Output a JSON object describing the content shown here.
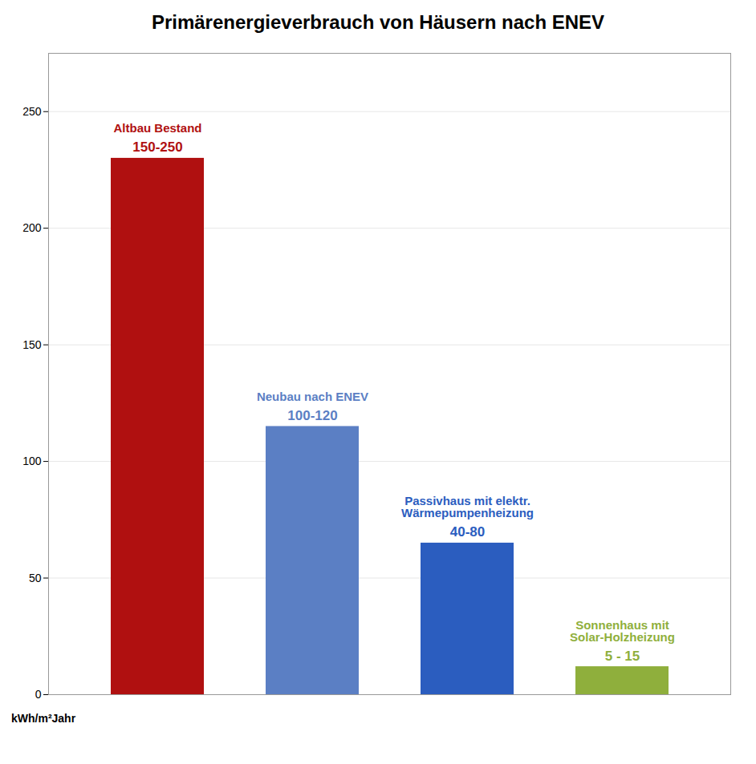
{
  "chart_data": {
    "type": "bar",
    "title": "Primärenergieverbrauch von Häusern nach ENEV",
    "ylabel": "kWh/m²Jahr",
    "categories": [
      "Altbau Bestand",
      "Neubau nach ENEV",
      "Passivhaus mit elektr.\nWärmepumpenheizung",
      "Sonnenhaus mit\nSolar-Holzheizung"
    ],
    "values": [
      230,
      115,
      65,
      12
    ],
    "colors": [
      "#B01010",
      "#5B7FC4",
      "#2B5DBF",
      "#8FAF3C"
    ],
    "annotations": [
      "150-250",
      "100-120",
      "40-80",
      "5 - 15"
    ],
    "ylim": [
      0,
      275
    ],
    "yticks": [
      0,
      50,
      100,
      150,
      200,
      250
    ],
    "grid": true,
    "tick_labels": "y"
  }
}
